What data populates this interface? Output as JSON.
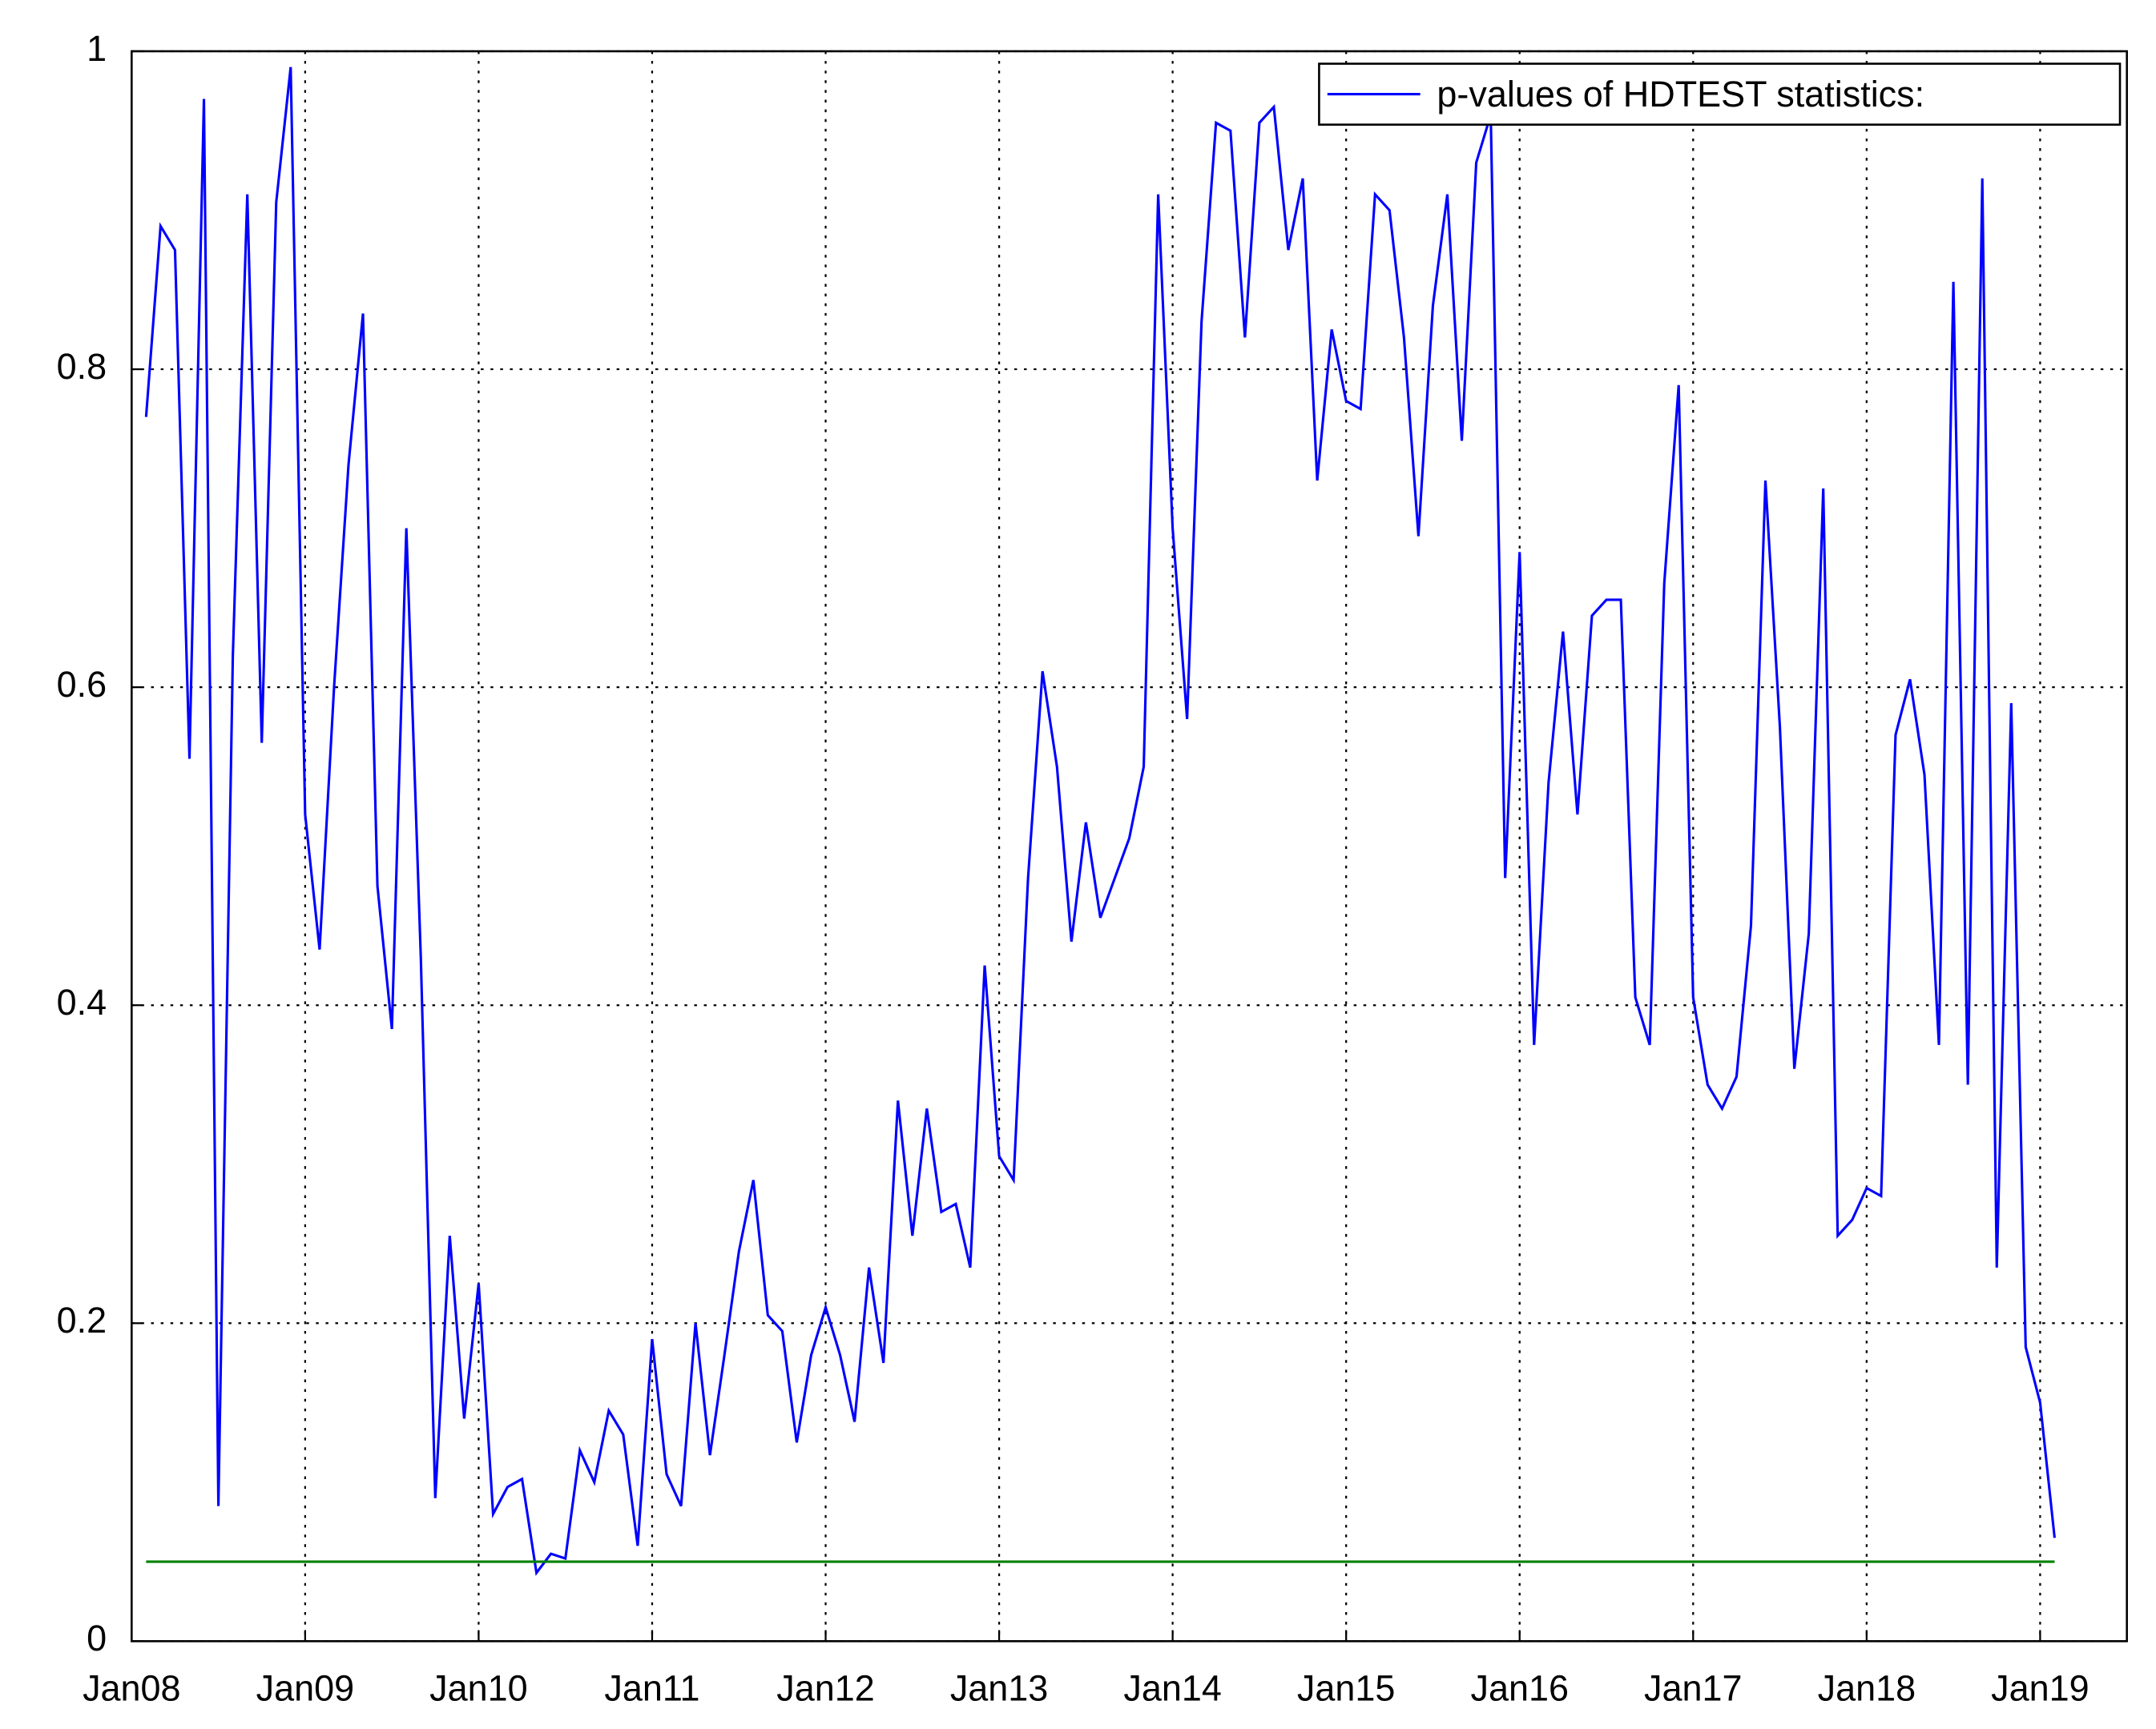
{
  "chart_data": {
    "type": "line",
    "series": [
      {
        "name": "p-values of HDTEST statistics:",
        "color": "#0000ff",
        "x": [
          "2008-02",
          "2008-03",
          "2008-04",
          "2008-05",
          "2008-06",
          "2008-07",
          "2008-08",
          "2008-09",
          "2008-10",
          "2008-11",
          "2008-12",
          "2009-01",
          "2009-02",
          "2009-03",
          "2009-04",
          "2009-05",
          "2009-06",
          "2009-07",
          "2009-08",
          "2009-09",
          "2009-10",
          "2009-11",
          "2009-12",
          "2010-01",
          "2010-02",
          "2010-03",
          "2010-04",
          "2010-05",
          "2010-06",
          "2010-07",
          "2010-08",
          "2010-09",
          "2010-10",
          "2010-11",
          "2010-12",
          "2011-01",
          "2011-02",
          "2011-03",
          "2011-04",
          "2011-05",
          "2011-06",
          "2011-07",
          "2011-08",
          "2011-09",
          "2011-10",
          "2011-11",
          "2011-12",
          "2012-01",
          "2012-02",
          "2012-03",
          "2012-04",
          "2012-05",
          "2012-06",
          "2012-07",
          "2012-08",
          "2012-09",
          "2012-10",
          "2012-11",
          "2012-12",
          "2013-01",
          "2013-02",
          "2013-03",
          "2013-04",
          "2013-05",
          "2013-06",
          "2013-07",
          "2013-08",
          "2013-09",
          "2013-10",
          "2013-11",
          "2013-12",
          "2014-01",
          "2014-02",
          "2014-03",
          "2014-04",
          "2014-05",
          "2014-06",
          "2014-07",
          "2014-08",
          "2014-09",
          "2014-10",
          "2014-11",
          "2014-12",
          "2015-01",
          "2015-02",
          "2015-03",
          "2015-04",
          "2015-05",
          "2015-06",
          "2015-07",
          "2015-08",
          "2015-09",
          "2015-10",
          "2015-11",
          "2015-12",
          "2016-01",
          "2016-02",
          "2016-03",
          "2016-04",
          "2016-05",
          "2016-06",
          "2016-07",
          "2016-08",
          "2016-09",
          "2016-10",
          "2016-11",
          "2016-12",
          "2017-01",
          "2017-02",
          "2017-03",
          "2017-04",
          "2017-05",
          "2017-06",
          "2017-07",
          "2017-08",
          "2017-09",
          "2017-10",
          "2017-11",
          "2017-12",
          "2018-01",
          "2018-02",
          "2018-03",
          "2018-04",
          "2018-05",
          "2018-06",
          "2018-07",
          "2018-08",
          "2018-09",
          "2018-10",
          "2018-11",
          "2018-12",
          "2019-01",
          "2019-02"
        ],
        "values": [
          0.77,
          0.89,
          0.875,
          0.555,
          0.97,
          0.085,
          0.62,
          0.91,
          0.565,
          0.905,
          0.99,
          0.52,
          0.435,
          0.6,
          0.74,
          0.835,
          0.475,
          0.385,
          0.7,
          0.43,
          0.09,
          0.255,
          0.14,
          0.225,
          0.08,
          0.097,
          0.102,
          0.043,
          0.055,
          0.052,
          0.12,
          0.1,
          0.145,
          0.13,
          0.06,
          0.19,
          0.105,
          0.085,
          0.2,
          0.117,
          0.18,
          0.245,
          0.29,
          0.205,
          0.195,
          0.125,
          0.18,
          0.21,
          0.18,
          0.138,
          0.235,
          0.175,
          0.34,
          0.255,
          0.335,
          0.27,
          0.275,
          0.235,
          0.425,
          0.305,
          0.29,
          0.48,
          0.61,
          0.55,
          0.44,
          0.515,
          0.455,
          0.48,
          0.505,
          0.55,
          0.91,
          0.7,
          0.58,
          0.83,
          0.955,
          0.95,
          0.82,
          0.955,
          0.965,
          0.875,
          0.92,
          0.73,
          0.825,
          0.78,
          0.775,
          0.91,
          0.9,
          0.82,
          0.695,
          0.84,
          0.91,
          0.755,
          0.93,
          0.96,
          0.48,
          0.685,
          0.375,
          0.54,
          0.635,
          0.52,
          0.645,
          0.655,
          0.655,
          0.405,
          0.375,
          0.665,
          0.79,
          0.405,
          0.35,
          0.335,
          0.355,
          0.45,
          0.73,
          0.575,
          0.36,
          0.445,
          0.725,
          0.255,
          0.265,
          0.285,
          0.28,
          0.57,
          0.605,
          0.545,
          0.375,
          0.855,
          0.35,
          0.92,
          0.235,
          0.59,
          0.185,
          0.15,
          0.065
        ]
      },
      {
        "color": "#008000",
        "x": [
          "2008-02",
          "2019-02"
        ],
        "values": [
          0.05,
          0.05
        ]
      }
    ],
    "xlim": [
      "2008-01",
      "2019-07"
    ],
    "xticks": [
      {
        "value": "2008-01",
        "label": "Jan08"
      },
      {
        "value": "2009-01",
        "label": "Jan09"
      },
      {
        "value": "2010-01",
        "label": "Jan10"
      },
      {
        "value": "2011-01",
        "label": "Jan11"
      },
      {
        "value": "2012-01",
        "label": "Jan12"
      },
      {
        "value": "2013-01",
        "label": "Jan13"
      },
      {
        "value": "2014-01",
        "label": "Jan14"
      },
      {
        "value": "2015-01",
        "label": "Jan15"
      },
      {
        "value": "2016-01",
        "label": "Jan16"
      },
      {
        "value": "2017-01",
        "label": "Jan17"
      },
      {
        "value": "2018-01",
        "label": "Jan18"
      },
      {
        "value": "2019-01",
        "label": "Jan19"
      }
    ],
    "ylim": [
      0,
      1
    ],
    "yticks": [
      0,
      0.2,
      0.4,
      0.6,
      0.8,
      1
    ],
    "grid": true,
    "legend": "upper right"
  }
}
